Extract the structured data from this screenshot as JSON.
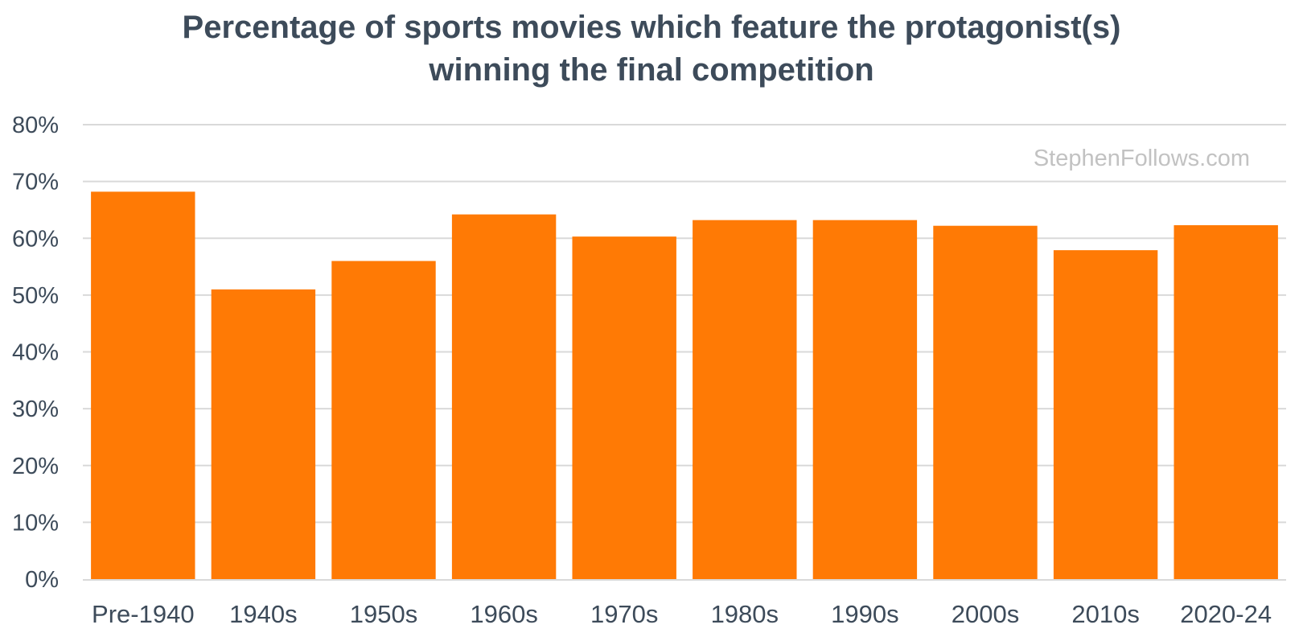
{
  "chart_data": {
    "type": "bar",
    "title_lines": [
      "Percentage of sports movies which feature the protagonist(s)",
      "winning the final competition"
    ],
    "categories": [
      "Pre-1940",
      "1940s",
      "1950s",
      "1960s",
      "1970s",
      "1980s",
      "1990s",
      "2000s",
      "2010s",
      "2020-24"
    ],
    "values": [
      68.2,
      51.0,
      56.0,
      64.2,
      60.3,
      63.2,
      63.2,
      62.2,
      57.9,
      62.3
    ],
    "unit": "%",
    "ylim": [
      0,
      80
    ],
    "yticks": [
      0,
      10,
      20,
      30,
      40,
      50,
      60,
      70,
      80
    ],
    "ytick_labels": [
      "0%",
      "10%",
      "20%",
      "30%",
      "40%",
      "50%",
      "60%",
      "70%",
      "80%"
    ],
    "xlabel": "",
    "ylabel": "",
    "grid": true,
    "legend": "none",
    "watermark": "StephenFollows.com",
    "colors": {
      "bar": "#ff7a05",
      "grid": "#d9d9d9",
      "axis": "#d9d9d9",
      "text": "#3d4b5a",
      "watermark": "#c2c2c2"
    }
  }
}
